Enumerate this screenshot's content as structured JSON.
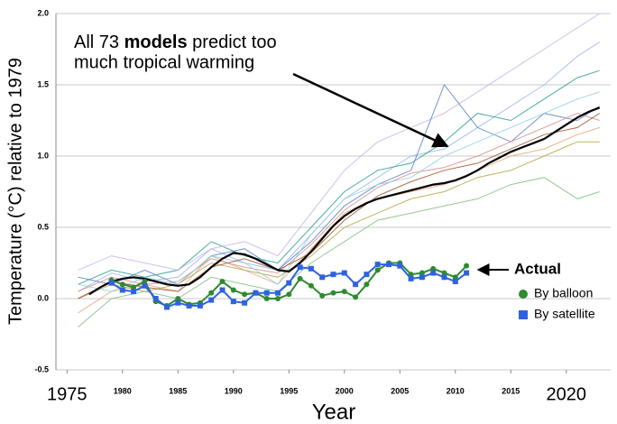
{
  "chart_data": {
    "type": "line",
    "ylabel": "Temperature (°C) relative to 1979",
    "xlabel": "Year",
    "annotation": [
      "All 73 ",
      "models",
      " predict too",
      "much tropical warming"
    ],
    "actual_label": "Actual",
    "xlim": [
      1974,
      2024
    ],
    "xticks": [
      1975,
      1980,
      1985,
      1990,
      1995,
      2000,
      2005,
      2010,
      2015,
      2020
    ],
    "ylim": [
      -0.5,
      2.0
    ],
    "yticks": [
      {
        "value": 2,
        "label": "2.0"
      },
      1.5,
      {
        "value": 1,
        "label": "1.0"
      },
      0.5,
      {
        "value": 0,
        "label": "0.0"
      },
      -0.5
    ],
    "grid": true,
    "models": [
      {
        "color": "#9db7e8",
        "x": [
          1976,
          1979,
          1982,
          1985,
          1988,
          1991,
          1994,
          1997,
          2000,
          2003,
          2006,
          2009,
          2012,
          2015,
          2018,
          2021,
          2023
        ],
        "values": [
          0.05,
          0.18,
          0.12,
          0.15,
          0.35,
          0.25,
          0.2,
          0.45,
          0.7,
          0.85,
          1.0,
          1.05,
          1.2,
          1.35,
          1.5,
          1.7,
          1.8
        ]
      },
      {
        "color": "#e8a87c",
        "x": [
          1976,
          1979,
          1982,
          1985,
          1988,
          1991,
          1994,
          1997,
          2000,
          2003,
          2006,
          2009,
          2012,
          2015,
          2018,
          2021,
          2023
        ],
        "values": [
          -0.1,
          0.05,
          0.1,
          0.05,
          0.3,
          0.2,
          0.1,
          0.35,
          0.6,
          0.7,
          0.75,
          0.8,
          0.9,
          1.0,
          1.05,
          1.15,
          1.2
        ]
      },
      {
        "color": "#2a9d8f",
        "x": [
          1976,
          1979,
          1982,
          1985,
          1988,
          1991,
          1994,
          1997,
          2000,
          2003,
          2006,
          2009,
          2012,
          2015,
          2018,
          2021,
          2023
        ],
        "values": [
          0.1,
          0.2,
          0.15,
          0.2,
          0.4,
          0.3,
          0.25,
          0.5,
          0.75,
          0.9,
          0.95,
          1.1,
          1.3,
          1.25,
          1.4,
          1.55,
          1.6
        ]
      },
      {
        "color": "#b5a642",
        "x": [
          1976,
          1979,
          1982,
          1985,
          1988,
          1991,
          1994,
          1997,
          2000,
          2003,
          2006,
          2009,
          2012,
          2015,
          2018,
          2021,
          2023
        ],
        "values": [
          0.0,
          0.1,
          0.05,
          0.1,
          0.25,
          0.2,
          0.15,
          0.3,
          0.5,
          0.6,
          0.7,
          0.75,
          0.85,
          0.9,
          1.0,
          1.1,
          1.1
        ]
      },
      {
        "color": "#c9b3e6",
        "x": [
          1976,
          1979,
          1982,
          1985,
          1988,
          1991,
          1994,
          1997,
          2000,
          2003,
          2006,
          2009,
          2012,
          2015,
          2018,
          2021,
          2023
        ],
        "values": [
          0.2,
          0.3,
          0.25,
          0.2,
          0.35,
          0.4,
          0.3,
          0.6,
          0.9,
          1.1,
          1.2,
          1.3,
          1.45,
          1.6,
          1.75,
          1.9,
          2.0
        ]
      },
      {
        "color": "#7fbf7f",
        "x": [
          1976,
          1979,
          1982,
          1985,
          1988,
          1991,
          1994,
          1997,
          2000,
          2003,
          2006,
          2009,
          2012,
          2015,
          2018,
          2021,
          2023
        ],
        "values": [
          -0.2,
          0.0,
          0.05,
          0.0,
          0.15,
          0.1,
          0.05,
          0.25,
          0.4,
          0.55,
          0.6,
          0.65,
          0.7,
          0.8,
          0.85,
          0.7,
          0.75
        ]
      },
      {
        "color": "#5b7fc7",
        "x": [
          1976,
          1979,
          1982,
          1985,
          1988,
          1991,
          1994,
          1997,
          2000,
          2003,
          2006,
          2009,
          2012,
          2015,
          2018,
          2021,
          2023
        ],
        "values": [
          0.15,
          0.1,
          0.2,
          0.1,
          0.3,
          0.35,
          0.2,
          0.4,
          0.65,
          0.8,
          0.9,
          1.5,
          1.2,
          1.1,
          1.3,
          1.25,
          1.35
        ]
      },
      {
        "color": "#d98c8c",
        "x": [
          1976,
          1979,
          1982,
          1985,
          1988,
          1991,
          1994,
          1997,
          2000,
          2003,
          2006,
          2009,
          2012,
          2015,
          2018,
          2021,
          2023
        ],
        "values": [
          0.05,
          0.15,
          0.1,
          0.12,
          0.28,
          0.22,
          0.18,
          0.38,
          0.62,
          0.78,
          0.88,
          0.92,
          1.0,
          1.1,
          1.2,
          1.3,
          1.25
        ]
      },
      {
        "color": "#8fd1e0",
        "x": [
          1976,
          1979,
          1982,
          1985,
          1988,
          1991,
          1994,
          1997,
          2000,
          2003,
          2006,
          2009,
          2012,
          2015,
          2018,
          2021,
          2023
        ],
        "values": [
          0.1,
          0.05,
          0.15,
          0.1,
          0.3,
          0.25,
          0.1,
          0.45,
          0.7,
          0.8,
          0.85,
          1.0,
          1.1,
          1.2,
          1.3,
          1.4,
          1.45
        ]
      },
      {
        "color": "#a0522d",
        "x": [
          1976,
          1979,
          1982,
          1985,
          1988,
          1991,
          1994,
          1997,
          2000,
          2003,
          2006,
          2009,
          2012,
          2015,
          2018,
          2021,
          2023
        ],
        "values": [
          0.0,
          0.12,
          0.08,
          0.05,
          0.22,
          0.28,
          0.2,
          0.32,
          0.55,
          0.72,
          0.82,
          0.9,
          0.95,
          1.05,
          1.15,
          1.2,
          1.3
        ]
      }
    ],
    "mean": {
      "color": "#000000",
      "x": [
        1977,
        1978,
        1979,
        1980,
        1981,
        1982,
        1983,
        1984,
        1985,
        1986,
        1987,
        1988,
        1989,
        1990,
        1991,
        1992,
        1993,
        1994,
        1995,
        1996,
        1997,
        1998,
        1999,
        2000,
        2001,
        2002,
        2003,
        2004,
        2005,
        2006,
        2007,
        2008,
        2009,
        2010,
        2011,
        2012,
        2013,
        2014,
        2015,
        2016,
        2017,
        2018,
        2019,
        2020,
        2021,
        2022,
        2023
      ],
      "values": [
        0.03,
        0.08,
        0.12,
        0.14,
        0.15,
        0.14,
        0.12,
        0.1,
        0.09,
        0.1,
        0.15,
        0.22,
        0.28,
        0.32,
        0.31,
        0.28,
        0.24,
        0.2,
        0.19,
        0.25,
        0.33,
        0.42,
        0.51,
        0.58,
        0.63,
        0.67,
        0.7,
        0.72,
        0.74,
        0.76,
        0.78,
        0.8,
        0.81,
        0.83,
        0.86,
        0.9,
        0.95,
        0.99,
        1.03,
        1.06,
        1.09,
        1.12,
        1.17,
        1.22,
        1.27,
        1.31,
        1.34
      ]
    },
    "series": [
      {
        "name": "By balloon",
        "color": "#2e8b2e",
        "marker": "circle",
        "x": [
          1979,
          1980,
          1981,
          1982,
          1983,
          1984,
          1985,
          1986,
          1987,
          1988,
          1989,
          1990,
          1991,
          1992,
          1993,
          1994,
          1995,
          1996,
          1997,
          1998,
          1999,
          2000,
          2001,
          2002,
          2003,
          2004,
          2005,
          2006,
          2007,
          2008,
          2009,
          2010,
          2011
        ],
        "values": [
          0.13,
          0.1,
          0.08,
          0.12,
          -0.02,
          -0.05,
          0.0,
          -0.04,
          -0.03,
          0.04,
          0.12,
          0.06,
          0.03,
          0.04,
          0.0,
          0.0,
          0.03,
          0.14,
          0.09,
          0.02,
          0.04,
          0.05,
          0.01,
          0.1,
          0.2,
          0.25,
          0.25,
          0.17,
          0.18,
          0.21,
          0.18,
          0.15,
          0.23
        ]
      },
      {
        "name": "By satellite",
        "color": "#2f62e0",
        "marker": "square",
        "x": [
          1979,
          1980,
          1981,
          1982,
          1983,
          1984,
          1985,
          1986,
          1987,
          1988,
          1989,
          1990,
          1991,
          1992,
          1993,
          1994,
          1995,
          1996,
          1997,
          1998,
          1999,
          2000,
          2001,
          2002,
          2003,
          2004,
          2005,
          2006,
          2007,
          2008,
          2009,
          2010,
          2011
        ],
        "values": [
          0.11,
          0.06,
          0.05,
          0.09,
          0.0,
          -0.06,
          -0.03,
          -0.05,
          -0.05,
          -0.01,
          0.06,
          -0.02,
          -0.03,
          0.04,
          0.04,
          0.04,
          0.11,
          0.22,
          0.21,
          0.15,
          0.17,
          0.18,
          0.1,
          0.17,
          0.24,
          0.24,
          0.23,
          0.14,
          0.15,
          0.18,
          0.15,
          0.12,
          0.18
        ]
      }
    ]
  }
}
